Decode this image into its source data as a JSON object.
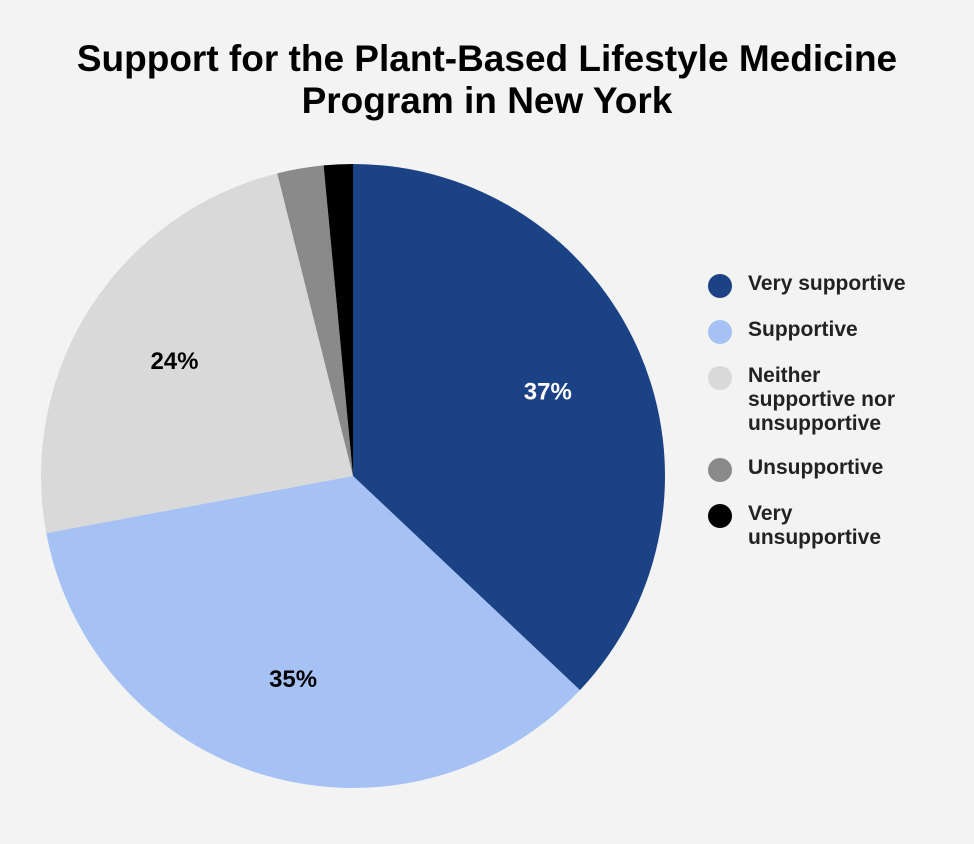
{
  "title_lines": [
    "Support for the Plant-Based Lifestyle Medicine",
    "Program in New York"
  ],
  "chart_data": {
    "type": "pie",
    "title": "Support for the Plant-Based Lifestyle Medicine Program in New York",
    "legend_position": "right",
    "slices": [
      {
        "label": "Very supportive",
        "value": 37,
        "display": "37%",
        "color": "#1c4286",
        "label_color": "#ffffff"
      },
      {
        "label": "Supportive",
        "value": 35,
        "display": "35%",
        "color": "#a6c2f4",
        "label_color": "#000000"
      },
      {
        "label": "Neither supportive nor unsupportive",
        "legend_text": "Neither\nsupportive nor\nunsupportive",
        "value": 24,
        "display": "24%",
        "color": "#d9d9d9",
        "label_color": "#000000"
      },
      {
        "label": "Unsupportive",
        "value": 2.4,
        "display": "",
        "color": "#8a8a8a",
        "label_color": "#000000"
      },
      {
        "label": "Very unsupportive",
        "legend_text": "Very\nunsupportive",
        "value": 1.5,
        "display": "",
        "color": "#000000",
        "label_color": "#ffffff"
      }
    ]
  }
}
